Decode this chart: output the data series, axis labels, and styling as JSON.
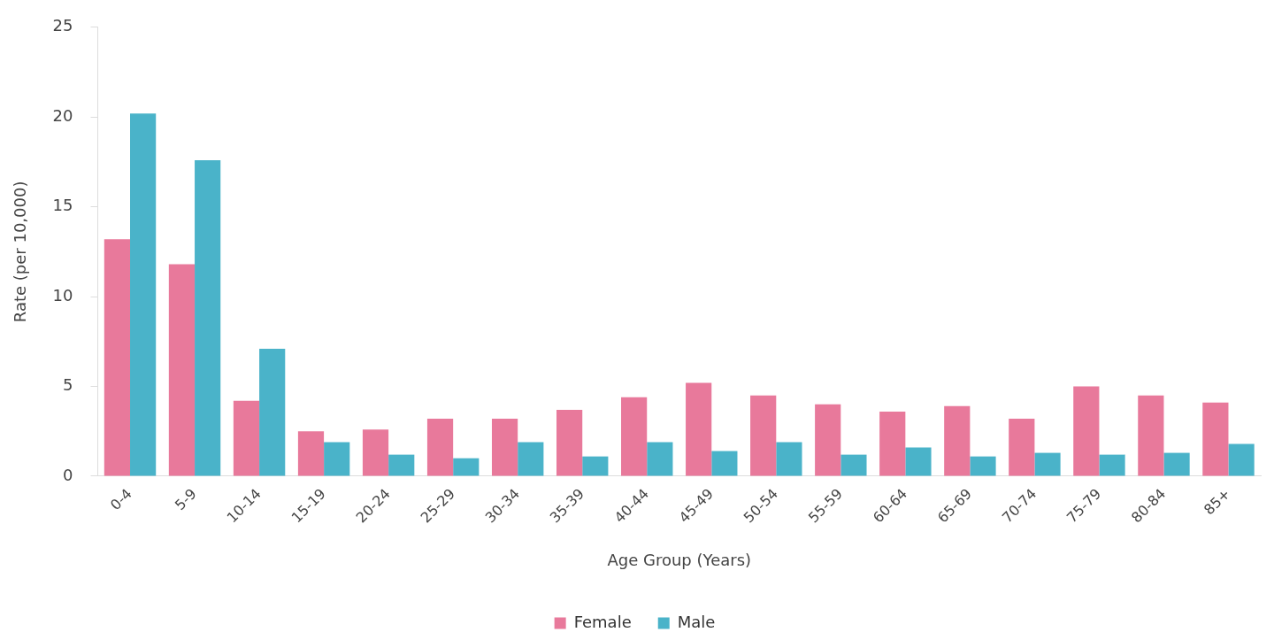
{
  "chart_data": {
    "type": "bar",
    "xlabel": "Age Group (Years)",
    "ylabel": "Rate (per 10,000)",
    "categories": [
      "0-4",
      "5-9",
      "10-14",
      "15-19",
      "20-24",
      "25-29",
      "30-34",
      "35-39",
      "40-44",
      "45-49",
      "50-54",
      "55-59",
      "60-64",
      "65-69",
      "70-74",
      "75-79",
      "80-84",
      "85+"
    ],
    "series": [
      {
        "name": "Female",
        "color": "#e8799b",
        "values": [
          13.2,
          11.8,
          4.2,
          2.5,
          2.6,
          3.2,
          3.2,
          3.7,
          4.4,
          5.2,
          4.5,
          4.0,
          3.6,
          3.9,
          3.2,
          5.0,
          4.5,
          4.1
        ]
      },
      {
        "name": "Male",
        "color": "#4ab3c9",
        "values": [
          20.2,
          17.6,
          7.1,
          1.9,
          1.2,
          1.0,
          1.9,
          1.1,
          1.9,
          1.4,
          1.9,
          1.2,
          1.6,
          1.1,
          1.3,
          1.2,
          1.3,
          1.8
        ]
      }
    ],
    "ylim": [
      0,
      25
    ],
    "yticks": [
      0,
      5,
      10,
      15,
      20,
      25
    ],
    "grid": false,
    "legend": "bottom"
  }
}
